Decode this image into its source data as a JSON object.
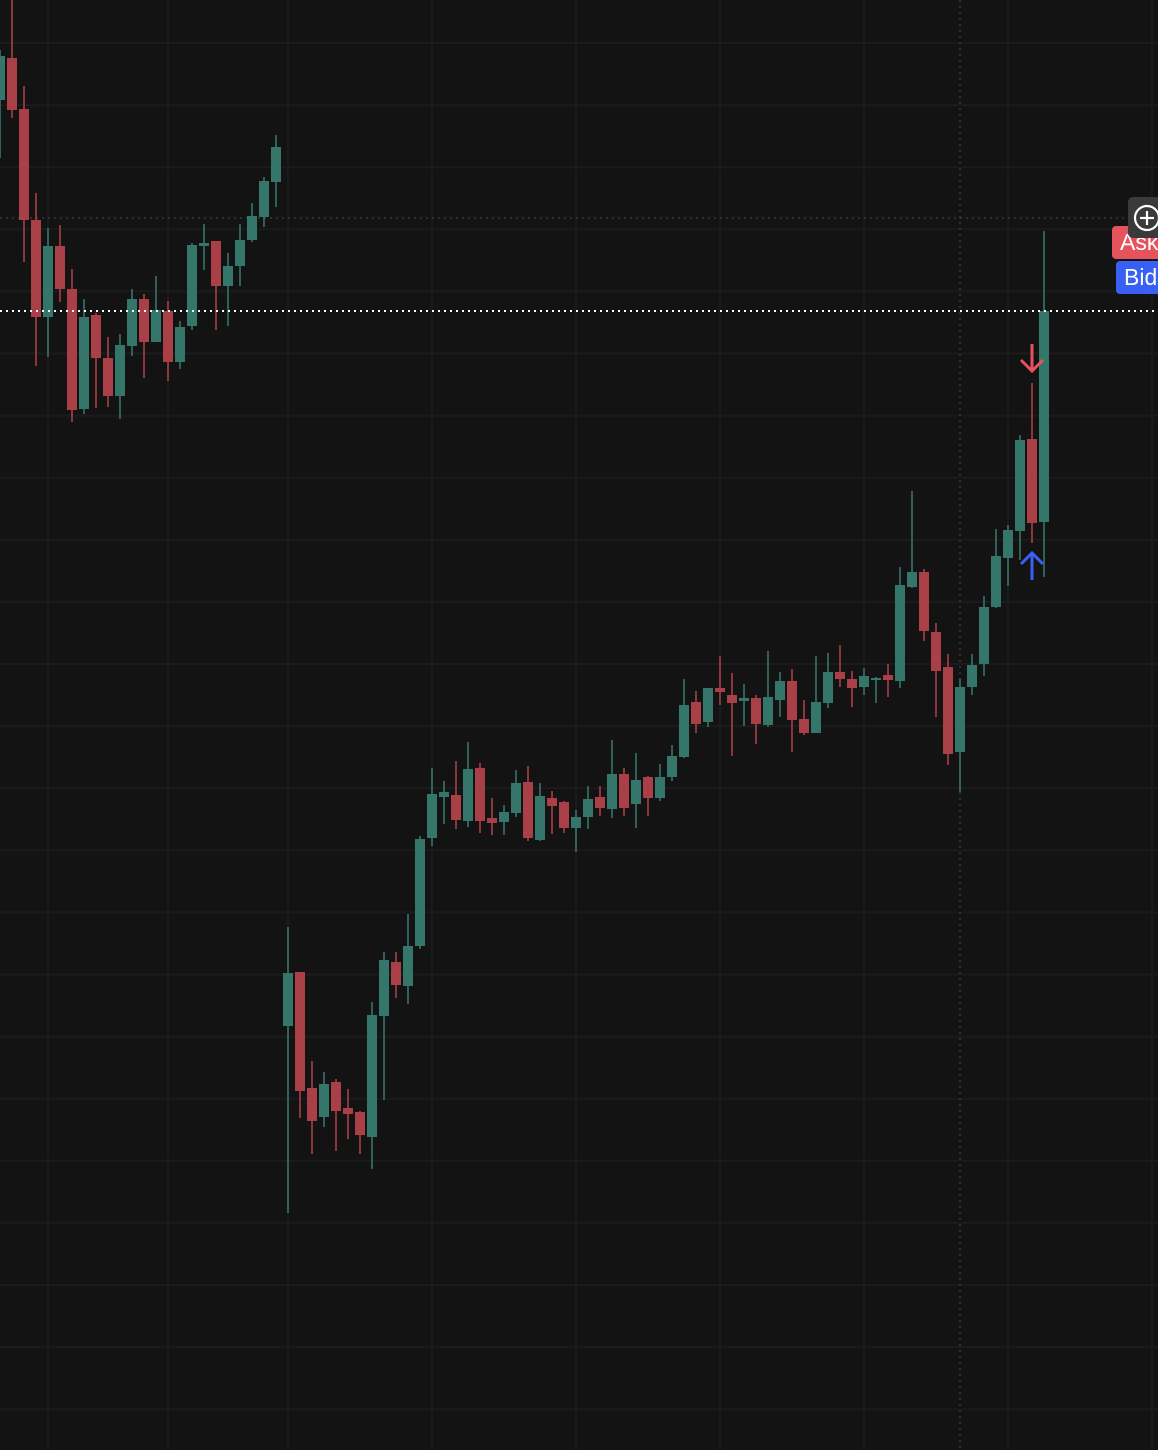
{
  "colors": {
    "background": "#131313",
    "up": "#35766a",
    "down": "#a93f47",
    "grid": "#1b1b1b",
    "ask": "#e5535d",
    "bid": "#3860f5",
    "last_price_line": "#ffffff"
  },
  "price_tags": {
    "ask_label": "Ask",
    "bid_label": "Bid"
  },
  "toolbar": {
    "add_icon": "circle-plus-icon"
  },
  "chart_data": {
    "type": "candlestick",
    "title": "",
    "xlabel": "",
    "ylabel": "",
    "ylim": [
      0,
      145
    ],
    "grid": true,
    "candles": [
      [
        135.0,
        140.0,
        129.2,
        139.4
      ],
      [
        139.2,
        145.0,
        133.2,
        134.0
      ],
      [
        134.1,
        136.4,
        118.8,
        123.0
      ],
      [
        123.0,
        125.7,
        108.4,
        113.3
      ],
      [
        113.3,
        122.2,
        109.3,
        120.4
      ],
      [
        120.4,
        122.5,
        114.8,
        116.1
      ],
      [
        116.1,
        118.1,
        102.8,
        104.0
      ],
      [
        104.1,
        115.1,
        103.6,
        113.3
      ],
      [
        113.5,
        113.7,
        104.2,
        109.2
      ],
      [
        109.2,
        111.3,
        104.3,
        105.4
      ],
      [
        105.4,
        111.6,
        103.1,
        110.5
      ],
      [
        110.4,
        116.1,
        109.4,
        115.1
      ],
      [
        115.1,
        115.6,
        107.2,
        110.8
      ],
      [
        110.8,
        117.4,
        110.8,
        114.0
      ],
      [
        113.9,
        114.9,
        106.9,
        108.8
      ],
      [
        108.8,
        112.9,
        108.1,
        112.3
      ],
      [
        112.4,
        120.7,
        112.0,
        120.5
      ],
      [
        120.4,
        122.6,
        118.0,
        120.7
      ],
      [
        120.9,
        120.9,
        112.0,
        116.4
      ],
      [
        116.4,
        119.7,
        112.4,
        118.4
      ],
      [
        118.4,
        122.6,
        116.4,
        121.0
      ],
      [
        121.0,
        124.7,
        120.8,
        123.4
      ],
      [
        123.3,
        127.3,
        122.3,
        126.9
      ],
      [
        126.8,
        131.5,
        124.3,
        130.3
      ],
      [
        42.4,
        52.3,
        23.7,
        47.7
      ],
      [
        47.8,
        47.8,
        33.2,
        35.9
      ],
      [
        36.2,
        38.9,
        29.6,
        32.9
      ],
      [
        33.3,
        37.8,
        32.3,
        36.6
      ],
      [
        36.8,
        37.1,
        29.9,
        33.9
      ],
      [
        34.2,
        36.1,
        31.1,
        33.6
      ],
      [
        33.8,
        33.9,
        29.6,
        31.5
      ],
      [
        31.3,
        44.8,
        28.1,
        43.5
      ],
      [
        43.4,
        49.8,
        35.0,
        49.0
      ],
      [
        48.8,
        49.8,
        45.2,
        46.5
      ],
      [
        46.4,
        53.6,
        44.6,
        50.4
      ],
      [
        50.4,
        61.4,
        50.1,
        61.1
      ],
      [
        61.2,
        68.2,
        60.4,
        65.6
      ],
      [
        65.3,
        66.9,
        62.6,
        65.8
      ],
      [
        65.5,
        68.9,
        62.1,
        63.0
      ],
      [
        62.9,
        70.8,
        62.3,
        68.1
      ],
      [
        68.2,
        68.7,
        61.7,
        62.9
      ],
      [
        63.2,
        65.2,
        61.5,
        62.7
      ],
      [
        62.8,
        64.5,
        61.5,
        63.8
      ],
      [
        63.7,
        68.0,
        63.3,
        66.7
      ],
      [
        66.8,
        68.4,
        60.9,
        61.2
      ],
      [
        61.0,
        66.7,
        60.9,
        65.4
      ],
      [
        65.2,
        65.9,
        61.6,
        64.4
      ],
      [
        64.8,
        64.9,
        61.7,
        62.2
      ],
      [
        62.2,
        64.0,
        59.8,
        63.3
      ],
      [
        63.3,
        66.4,
        62.1,
        65.1
      ],
      [
        65.3,
        66.4,
        63.4,
        64.2
      ],
      [
        64.1,
        71.0,
        63.2,
        67.6
      ],
      [
        67.6,
        68.2,
        63.4,
        64.2
      ],
      [
        64.6,
        69.7,
        62.2,
        67.0
      ],
      [
        67.3,
        67.4,
        63.4,
        65.2
      ],
      [
        65.2,
        68.6,
        64.9,
        67.3
      ],
      [
        67.3,
        70.5,
        66.9,
        69.4
      ],
      [
        69.3,
        77.1,
        69.2,
        74.5
      ],
      [
        74.8,
        75.9,
        71.7,
        72.6
      ],
      [
        72.8,
        76.2,
        72.3,
        76.2
      ],
      [
        76.2,
        79.4,
        74.5,
        75.8
      ],
      [
        75.5,
        77.7,
        69.4,
        74.7
      ],
      [
        74.9,
        76.6,
        72.4,
        75.2
      ],
      [
        75.2,
        75.5,
        70.6,
        72.6
      ],
      [
        72.5,
        79.9,
        72.3,
        75.3
      ],
      [
        75.0,
        77.8,
        73.3,
        76.9
      ],
      [
        76.9,
        78.1,
        69.8,
        73.0
      ],
      [
        73.1,
        75.0,
        71.5,
        71.7
      ],
      [
        71.7,
        79.4,
        71.7,
        74.8
      ],
      [
        74.7,
        79.7,
        74.2,
        77.8
      ],
      [
        77.8,
        80.5,
        76.3,
        77.1
      ],
      [
        77.1,
        77.9,
        74.3,
        76.2
      ],
      [
        76.3,
        78.2,
        75.5,
        77.4
      ],
      [
        77.0,
        77.3,
        74.7,
        77.2
      ],
      [
        77.5,
        78.6,
        75.3,
        77.0
      ],
      [
        76.9,
        88.3,
        76.2,
        86.5
      ],
      [
        86.3,
        95.9,
        86.2,
        87.8
      ],
      [
        87.8,
        88.1,
        80.9,
        81.9
      ],
      [
        81.8,
        82.7,
        73.3,
        77.9
      ],
      [
        78.3,
        79.6,
        68.5,
        69.6
      ],
      [
        69.8,
        77.1,
        65.8,
        76.3
      ],
      [
        76.3,
        79.6,
        75.5,
        78.5
      ],
      [
        78.6,
        85.4,
        77.4,
        84.3
      ],
      [
        84.3,
        92.1,
        84.2,
        89.4
      ],
      [
        89.2,
        92.5,
        86.4,
        92.0
      ],
      [
        91.9,
        101.5,
        89.0,
        101.0
      ],
      [
        101.1,
        106.7,
        90.7,
        92.7
      ],
      [
        92.8,
        121.9,
        87.3,
        113.9
      ]
    ],
    "last_price": 113.9,
    "crosshair": {
      "index": 80,
      "price": 123.2
    },
    "ask_price": 120.8,
    "bid_price": 117.3,
    "markers": [
      {
        "index": 86,
        "type": "sell",
        "direction": "down",
        "price": 109.2
      },
      {
        "index": 86,
        "type": "buy",
        "direction": "up",
        "price": 88.4
      }
    ]
  }
}
